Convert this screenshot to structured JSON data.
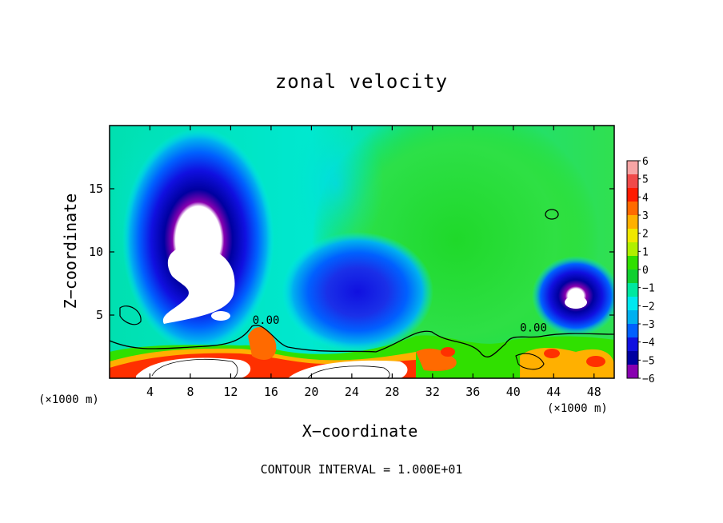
{
  "chart_data": {
    "type": "heatmap",
    "title": "zonal velocity",
    "xlabel": "X−coordinate",
    "ylabel": "Z−coordinate",
    "x_unit_left": "(×1000 m)",
    "x_unit_right": "(×1000 m)",
    "xlim": [
      0,
      50
    ],
    "ylim": [
      0,
      20
    ],
    "x_ticks": [
      4,
      8,
      12,
      16,
      20,
      24,
      28,
      32,
      36,
      40,
      44,
      48
    ],
    "y_ticks": [
      5,
      10,
      15
    ],
    "contour_labels": [
      {
        "text": "0.00",
        "x": 15.5,
        "z": 4.3
      },
      {
        "text": "0.00",
        "x": 42.0,
        "z": 3.7
      }
    ],
    "colorbar": {
      "levels": [
        6,
        5,
        4,
        3,
        2,
        1,
        0,
        -1,
        -2,
        -3,
        -4,
        -5,
        -6
      ],
      "level_labels": [
        "6",
        "5",
        "4",
        "3",
        "2",
        "1",
        "0",
        "−1",
        "−2",
        "−3",
        "−4",
        "−5",
        "−6"
      ],
      "colors": [
        "#f7a5a5",
        "#f04a4a",
        "#ff1a00",
        "#ff6a00",
        "#ffb000",
        "#f0e800",
        "#b0f000",
        "#30e000",
        "#10d030",
        "#00e8a0",
        "#00e8f0",
        "#00b0f0",
        "#0060ff",
        "#1010e0",
        "#0000a0",
        "#8800b0"
      ]
    },
    "features": [
      {
        "name": "upper-left negative core",
        "x": 9.5,
        "z": 9.0,
        "value_min": -6
      },
      {
        "name": "mid negative core",
        "x": 26.0,
        "z": 7.0,
        "value_min": -5
      },
      {
        "name": "right negative core",
        "x": 46.0,
        "z": 6.5,
        "value_min": -6
      },
      {
        "name": "near-surface positive layer",
        "x": 15.0,
        "z": 1.5,
        "value_max": 6
      }
    ],
    "footnote": "CONTOUR INTERVAL = 1.000E+01"
  }
}
